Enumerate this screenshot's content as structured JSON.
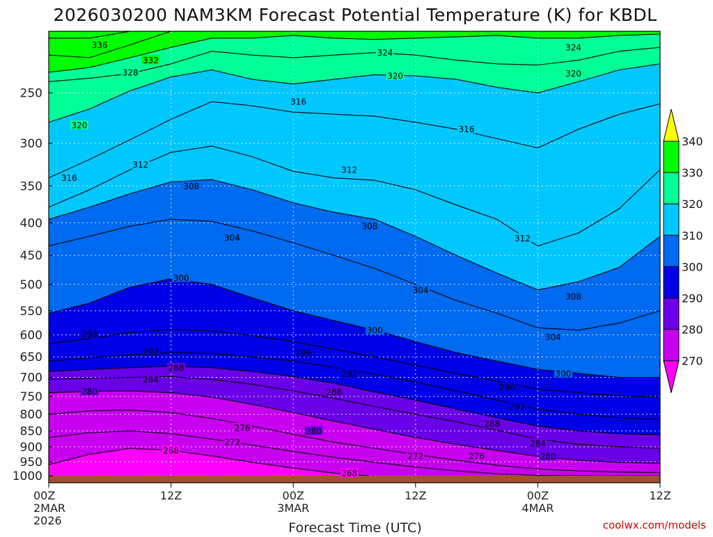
{
  "chart_data": {
    "type": "heatmap",
    "title": "2026030200 NAM3KM Forecast Potential Temperature (K) for KBDL",
    "xlabel": "Forecast Time (UTC)",
    "ylabel": "",
    "credit": "coolwx.com/models",
    "x_range_hours": [
      0,
      60
    ],
    "y_range_hpa": [
      1025,
      200
    ],
    "y_ticks": [
      250,
      300,
      350,
      400,
      450,
      500,
      550,
      600,
      650,
      700,
      750,
      800,
      850,
      900,
      950,
      1000
    ],
    "x_ticks": [
      {
        "hour": 0,
        "lines": [
          "00Z",
          "2MAR",
          "2026"
        ]
      },
      {
        "hour": 12,
        "lines": [
          "12Z"
        ]
      },
      {
        "hour": 24,
        "lines": [
          "00Z",
          "3MAR"
        ]
      },
      {
        "hour": 36,
        "lines": [
          "12Z"
        ]
      },
      {
        "hour": 48,
        "lines": [
          "00Z",
          "4MAR"
        ]
      },
      {
        "hour": 60,
        "lines": [
          "12Z"
        ]
      }
    ],
    "colorbar": {
      "levels": [
        270,
        280,
        290,
        300,
        310,
        320,
        330,
        340
      ],
      "colors": [
        "#ff00ff",
        "#c800f0",
        "#6a00e8",
        "#0000e6",
        "#006af0",
        "#00c8ff",
        "#00ff96",
        "#00ff00",
        "#ffff00"
      ],
      "extend": "both"
    },
    "surface_color": "#a0522d",
    "isentropes": [
      {
        "theta": 336,
        "x": [
          0,
          4,
          8,
          12,
          16,
          20,
          24,
          28,
          32,
          36,
          40,
          44,
          48,
          52,
          56,
          60
        ],
        "p": [
          205,
          205,
          200,
          200,
          200,
          200,
          200,
          200,
          200,
          200,
          200,
          200,
          200,
          200,
          200,
          200
        ]
      },
      {
        "theta": 332,
        "x": [
          0,
          4,
          8,
          12,
          16,
          20,
          24,
          28,
          32,
          36,
          40,
          44,
          48,
          52,
          56,
          60
        ],
        "p": [
          218,
          220,
          210,
          200,
          200,
          200,
          200,
          200,
          200,
          200,
          200,
          200,
          200,
          200,
          200,
          200
        ]
      },
      {
        "theta": 328,
        "x": [
          0,
          4,
          8,
          12,
          16,
          20,
          24,
          28,
          32,
          36,
          40,
          44,
          48,
          52,
          56,
          60
        ],
        "p": [
          232,
          228,
          220,
          212,
          205,
          205,
          203,
          205,
          206,
          205,
          204,
          203,
          205,
          205,
          203,
          202
        ]
      },
      {
        "theta": 324,
        "x": [
          0,
          4,
          8,
          12,
          16,
          20,
          24,
          28,
          32,
          36,
          40,
          44,
          48,
          52,
          56,
          60
        ],
        "p": [
          240,
          237,
          233,
          225,
          215,
          218,
          220,
          218,
          216,
          218,
          222,
          225,
          226,
          222,
          215,
          212
        ]
      },
      {
        "theta": 320,
        "x": [
          0,
          4,
          8,
          12,
          16,
          20,
          24,
          28,
          32,
          36,
          40,
          44,
          48,
          52,
          56,
          60
        ],
        "p": [
          278,
          265,
          248,
          236,
          230,
          238,
          242,
          238,
          234,
          235,
          238,
          245,
          250,
          240,
          230,
          225
        ]
      },
      {
        "theta": 316,
        "x": [
          0,
          4,
          8,
          12,
          16,
          20,
          24,
          28,
          32,
          36,
          40,
          44,
          48,
          52,
          56,
          60
        ],
        "p": [
          340,
          318,
          296,
          275,
          258,
          262,
          268,
          270,
          272,
          278,
          285,
          295,
          305,
          285,
          270,
          260
        ]
      },
      {
        "theta": 312,
        "x": [
          0,
          4,
          8,
          12,
          16,
          20,
          24,
          28,
          32,
          36,
          40,
          44,
          48,
          52,
          56,
          60
        ],
        "p": [
          378,
          355,
          330,
          310,
          303,
          315,
          332,
          340,
          343,
          355,
          375,
          395,
          435,
          415,
          380,
          330
        ]
      },
      {
        "theta": 308,
        "x": [
          0,
          4,
          8,
          12,
          16,
          20,
          24,
          28,
          32,
          36,
          40,
          44,
          48,
          52,
          56,
          60
        ],
        "p": [
          395,
          378,
          360,
          345,
          342,
          355,
          372,
          385,
          395,
          420,
          450,
          480,
          510,
          495,
          470,
          420
        ]
      },
      {
        "theta": 304,
        "x": [
          0,
          4,
          8,
          12,
          16,
          20,
          24,
          28,
          32,
          36,
          40,
          44,
          48,
          52,
          56,
          60
        ],
        "p": [
          435,
          420,
          405,
          395,
          398,
          412,
          430,
          450,
          472,
          500,
          530,
          555,
          585,
          590,
          575,
          550
        ]
      },
      {
        "theta": 300,
        "x": [
          0,
          4,
          8,
          12,
          16,
          20,
          24,
          28,
          32,
          36,
          40,
          44,
          48,
          52,
          56,
          60
        ],
        "p": [
          555,
          535,
          505,
          490,
          500,
          525,
          550,
          570,
          590,
          615,
          640,
          660,
          680,
          690,
          700,
          700
        ]
      },
      {
        "theta": 296,
        "x": [
          0,
          4,
          8,
          12,
          16,
          20,
          24,
          28,
          32,
          36,
          40,
          44,
          48,
          52,
          56,
          60
        ],
        "p": [
          620,
          608,
          595,
          588,
          592,
          602,
          615,
          632,
          650,
          670,
          690,
          710,
          730,
          740,
          748,
          752
        ]
      },
      {
        "theta": 292,
        "x": [
          0,
          4,
          8,
          12,
          16,
          20,
          24,
          28,
          32,
          36,
          40,
          44,
          48,
          52,
          56,
          60
        ],
        "p": [
          660,
          652,
          645,
          640,
          642,
          650,
          660,
          675,
          692,
          712,
          735,
          760,
          785,
          800,
          810,
          815
        ]
      },
      {
        "theta": 288,
        "x": [
          0,
          4,
          8,
          12,
          16,
          20,
          24,
          28,
          32,
          36,
          40,
          44,
          48,
          52,
          56,
          60
        ],
        "p": [
          685,
          680,
          676,
          672,
          676,
          685,
          698,
          715,
          738,
          760,
          785,
          810,
          835,
          850,
          858,
          862
        ]
      },
      {
        "theta": 284,
        "x": [
          0,
          4,
          8,
          12,
          16,
          20,
          24,
          28,
          32,
          36,
          40,
          44,
          48,
          52,
          56,
          60
        ],
        "p": [
          705,
          702,
          700,
          698,
          705,
          718,
          735,
          755,
          778,
          800,
          822,
          848,
          875,
          892,
          900,
          905
        ]
      },
      {
        "theta": 280,
        "x": [
          0,
          4,
          8,
          12,
          16,
          20,
          24,
          28,
          32,
          36,
          40,
          44,
          48,
          52,
          56,
          60
        ],
        "p": [
          740,
          736,
          735,
          740,
          752,
          772,
          795,
          820,
          845,
          870,
          892,
          912,
          932,
          945,
          952,
          955
        ]
      },
      {
        "theta": 276,
        "x": [
          0,
          4,
          8,
          12,
          16,
          20,
          24,
          28,
          32,
          36,
          40,
          44,
          48,
          52,
          56,
          60
        ],
        "p": [
          800,
          790,
          788,
          795,
          812,
          835,
          860,
          885,
          905,
          925,
          945,
          962,
          975,
          982,
          986,
          988
        ]
      },
      {
        "theta": 272,
        "x": [
          0,
          4,
          8,
          12,
          16,
          20,
          24,
          28,
          32,
          36,
          40,
          44,
          48,
          52,
          56,
          60
        ],
        "p": [
          870,
          855,
          850,
          858,
          875,
          895,
          915,
          935,
          952,
          968,
          982,
          992,
          998,
          1000,
          1000,
          1000
        ]
      },
      {
        "theta": 268,
        "x": [
          0,
          4,
          8,
          12,
          16,
          20,
          24,
          28,
          32,
          36,
          40,
          44,
          48,
          52,
          56,
          60
        ],
        "p": [
          960,
          925,
          905,
          912,
          930,
          952,
          972,
          990,
          1002,
          1008,
          1010,
          1010,
          1010,
          1010,
          1010,
          1010
        ]
      }
    ],
    "contour_labels": [
      {
        "text": "336",
        "x": 5.0,
        "p": 210
      },
      {
        "text": "332",
        "x": 10.0,
        "p": 222
      },
      {
        "text": "328",
        "x": 8.0,
        "p": 232
      },
      {
        "text": "324",
        "x": 33.0,
        "p": 216
      },
      {
        "text": "324",
        "x": 51.5,
        "p": 212
      },
      {
        "text": "320",
        "x": 3.0,
        "p": 281
      },
      {
        "text": "320",
        "x": 34.0,
        "p": 235
      },
      {
        "text": "320",
        "x": 51.5,
        "p": 233
      },
      {
        "text": "316",
        "x": 24.5,
        "p": 258
      },
      {
        "text": "316",
        "x": 41.0,
        "p": 285
      },
      {
        "text": "316",
        "x": 2.0,
        "p": 340
      },
      {
        "text": "312",
        "x": 9.0,
        "p": 324
      },
      {
        "text": "312",
        "x": 29.5,
        "p": 330
      },
      {
        "text": "312",
        "x": 46.5,
        "p": 423
      },
      {
        "text": "308",
        "x": 14.0,
        "p": 350
      },
      {
        "text": "308",
        "x": 31.5,
        "p": 405
      },
      {
        "text": "308",
        "x": 51.5,
        "p": 522
      },
      {
        "text": "304",
        "x": 18.0,
        "p": 422
      },
      {
        "text": "304",
        "x": 36.5,
        "p": 510
      },
      {
        "text": "304",
        "x": 49.5,
        "p": 605
      },
      {
        "text": "300",
        "x": 13.0,
        "p": 488
      },
      {
        "text": "300",
        "x": 32.0,
        "p": 590
      },
      {
        "text": "300",
        "x": 50.5,
        "p": 690
      },
      {
        "text": "296",
        "x": 4.0,
        "p": 598
      },
      {
        "text": "296",
        "x": 25.0,
        "p": 640
      },
      {
        "text": "296",
        "x": 45.0,
        "p": 725
      },
      {
        "text": "292",
        "x": 10.0,
        "p": 638
      },
      {
        "text": "292",
        "x": 29.5,
        "p": 690
      },
      {
        "text": "292",
        "x": 46.0,
        "p": 778
      },
      {
        "text": "288",
        "x": 12.5,
        "p": 676
      },
      {
        "text": "288",
        "x": 28.0,
        "p": 738
      },
      {
        "text": "288",
        "x": 43.5,
        "p": 828
      },
      {
        "text": "284",
        "x": 10.0,
        "p": 705
      },
      {
        "text": "284",
        "x": 48.0,
        "p": 888
      },
      {
        "text": "280",
        "x": 4.0,
        "p": 736
      },
      {
        "text": "280",
        "x": 26.0,
        "p": 850
      },
      {
        "text": "280",
        "x": 49.0,
        "p": 932
      },
      {
        "text": "276",
        "x": 19.0,
        "p": 840
      },
      {
        "text": "276",
        "x": 42.0,
        "p": 930
      },
      {
        "text": "272",
        "x": 18.0,
        "p": 885
      },
      {
        "text": "272",
        "x": 36.0,
        "p": 930
      },
      {
        "text": "268",
        "x": 12.0,
        "p": 912
      },
      {
        "text": "268",
        "x": 29.5,
        "p": 990
      }
    ]
  }
}
